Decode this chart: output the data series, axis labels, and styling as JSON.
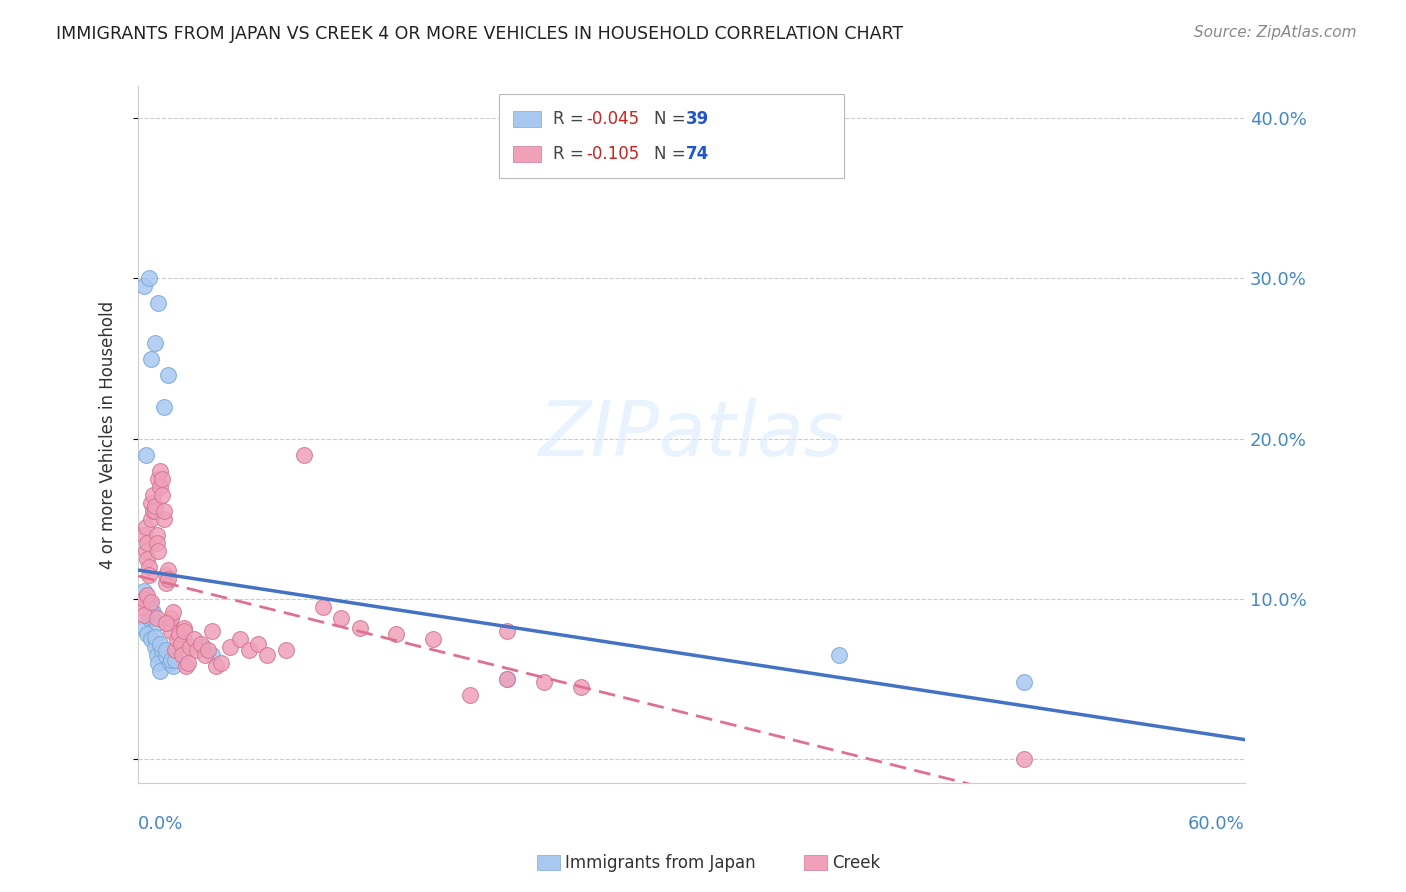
{
  "title": "IMMIGRANTS FROM JAPAN VS CREEK 4 OR MORE VEHICLES IN HOUSEHOLD CORRELATION CHART",
  "source": "Source: ZipAtlas.com",
  "ylabel": "4 or more Vehicles in Household",
  "xlim": [
    0.0,
    0.6
  ],
  "ylim": [
    -0.015,
    0.42
  ],
  "ytick_positions": [
    0.0,
    0.1,
    0.2,
    0.3,
    0.4
  ],
  "ytick_labels": [
    "",
    "10.0%",
    "20.0%",
    "30.0%",
    "40.0%"
  ],
  "xtick_positions": [
    0.0,
    0.1,
    0.2,
    0.3,
    0.4,
    0.5,
    0.6
  ],
  "blue_scatter_color": "#a8c8f0",
  "blue_scatter_edge": "#7aaad8",
  "pink_scatter_color": "#f0a0b8",
  "pink_scatter_edge": "#d07898",
  "blue_line_color": "#4472c4",
  "pink_line_color": "#e07090",
  "axis_color": "#cccccc",
  "tick_label_color": "#4488cc",
  "grid_color": "#cccccc",
  "watermark": "ZIPatlas",
  "watermark_color": "#ddeeff",
  "legend_R1": "-0.045",
  "legend_N1": "39",
  "legend_R2": "-0.105",
  "legend_N2": "74",
  "japan_x": [
    0.003,
    0.005,
    0.006,
    0.007,
    0.008,
    0.009,
    0.01,
    0.011,
    0.012,
    0.004,
    0.006,
    0.008,
    0.01,
    0.013,
    0.015,
    0.017,
    0.019,
    0.004,
    0.007,
    0.009,
    0.011,
    0.014,
    0.016,
    0.003,
    0.005,
    0.007,
    0.009,
    0.012,
    0.015,
    0.018,
    0.025,
    0.035,
    0.04,
    0.2,
    0.38,
    0.48,
    0.003,
    0.006,
    0.02
  ],
  "japan_y": [
    0.082,
    0.078,
    0.088,
    0.075,
    0.092,
    0.07,
    0.065,
    0.06,
    0.055,
    0.1,
    0.098,
    0.088,
    0.085,
    0.068,
    0.064,
    0.06,
    0.058,
    0.19,
    0.25,
    0.26,
    0.285,
    0.22,
    0.24,
    0.105,
    0.099,
    0.092,
    0.076,
    0.072,
    0.068,
    0.062,
    0.075,
    0.07,
    0.065,
    0.05,
    0.065,
    0.048,
    0.295,
    0.3,
    0.062
  ],
  "creek_x": [
    0.002,
    0.003,
    0.003,
    0.004,
    0.004,
    0.005,
    0.005,
    0.006,
    0.006,
    0.007,
    0.007,
    0.008,
    0.008,
    0.009,
    0.009,
    0.01,
    0.01,
    0.011,
    0.011,
    0.012,
    0.012,
    0.013,
    0.013,
    0.014,
    0.014,
    0.015,
    0.015,
    0.016,
    0.016,
    0.017,
    0.018,
    0.018,
    0.019,
    0.02,
    0.021,
    0.022,
    0.023,
    0.024,
    0.025,
    0.025,
    0.026,
    0.027,
    0.028,
    0.03,
    0.032,
    0.034,
    0.036,
    0.038,
    0.04,
    0.042,
    0.045,
    0.05,
    0.055,
    0.06,
    0.065,
    0.07,
    0.08,
    0.09,
    0.1,
    0.11,
    0.12,
    0.14,
    0.16,
    0.18,
    0.2,
    0.22,
    0.24,
    0.003,
    0.005,
    0.007,
    0.01,
    0.015,
    0.2,
    0.48
  ],
  "creek_y": [
    0.095,
    0.09,
    0.14,
    0.145,
    0.13,
    0.135,
    0.125,
    0.12,
    0.115,
    0.15,
    0.16,
    0.165,
    0.155,
    0.155,
    0.158,
    0.14,
    0.135,
    0.13,
    0.175,
    0.18,
    0.17,
    0.165,
    0.175,
    0.15,
    0.155,
    0.11,
    0.115,
    0.118,
    0.112,
    0.085,
    0.08,
    0.088,
    0.092,
    0.068,
    0.075,
    0.078,
    0.072,
    0.065,
    0.082,
    0.08,
    0.058,
    0.06,
    0.07,
    0.075,
    0.068,
    0.072,
    0.065,
    0.068,
    0.08,
    0.058,
    0.06,
    0.07,
    0.075,
    0.068,
    0.072,
    0.065,
    0.068,
    0.19,
    0.095,
    0.088,
    0.082,
    0.078,
    0.075,
    0.04,
    0.05,
    0.048,
    0.045,
    0.1,
    0.102,
    0.098,
    0.088,
    0.085,
    0.08,
    0.0
  ]
}
